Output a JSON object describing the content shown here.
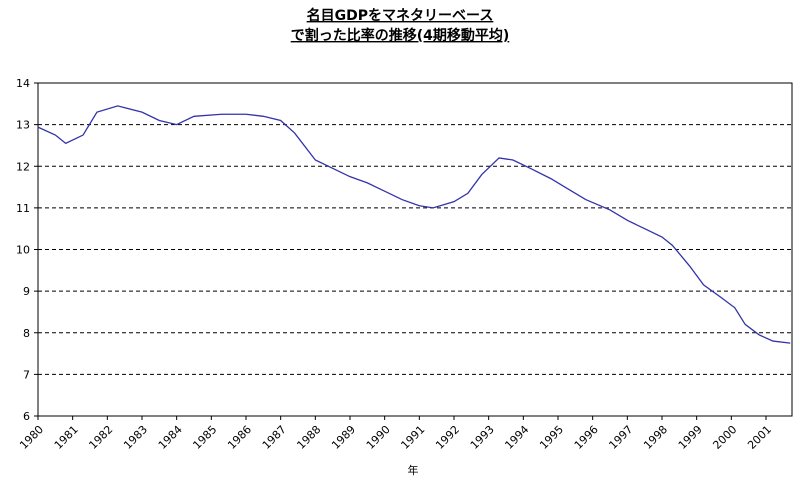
{
  "chart_data": {
    "type": "line",
    "title": [
      "名目GDPをマネタリーベース",
      "で割った比率の推移(4期移動平均)"
    ],
    "x_label": "年",
    "x": [
      1980.0,
      1980.5,
      1980.8,
      1981.3,
      1981.7,
      1982.3,
      1983.0,
      1983.5,
      1984.0,
      1984.5,
      1985.3,
      1986.0,
      1986.5,
      1987.0,
      1987.4,
      1988.0,
      1988.5,
      1989.0,
      1989.5,
      1990.0,
      1990.5,
      1991.0,
      1991.4,
      1992.0,
      1992.4,
      1992.8,
      1993.3,
      1993.7,
      1994.2,
      1994.8,
      1995.3,
      1995.8,
      1996.5,
      1997.0,
      1997.5,
      1998.0,
      1998.3,
      1998.8,
      1999.2,
      1999.7,
      2000.1,
      2000.4,
      2000.8,
      2001.2,
      2001.7
    ],
    "series": [
      {
        "color": "#3333aa",
        "values": [
          12.94,
          12.75,
          12.55,
          12.75,
          13.3,
          13.45,
          13.3,
          13.1,
          13.0,
          13.2,
          13.25,
          13.25,
          13.2,
          13.1,
          12.8,
          12.15,
          11.95,
          11.75,
          11.6,
          11.4,
          11.2,
          11.05,
          11.0,
          11.15,
          11.35,
          11.8,
          12.2,
          12.15,
          11.95,
          11.7,
          11.45,
          11.2,
          10.95,
          10.7,
          10.5,
          10.3,
          10.1,
          9.6,
          9.15,
          8.85,
          8.6,
          8.2,
          7.95,
          7.8,
          7.75
        ]
      }
    ],
    "xlim": [
      1980,
      2001.75
    ],
    "xticks": [
      1980,
      1981,
      1982,
      1983,
      1984,
      1985,
      1986,
      1987,
      1988,
      1989,
      1990,
      1991,
      1992,
      1993,
      1994,
      1995,
      1996,
      1997,
      1998,
      1999,
      2000,
      2001
    ],
    "ylim": [
      6,
      14
    ],
    "yticks": [
      6,
      7,
      8,
      9,
      10,
      11,
      12,
      13,
      14
    ],
    "grid": true
  }
}
